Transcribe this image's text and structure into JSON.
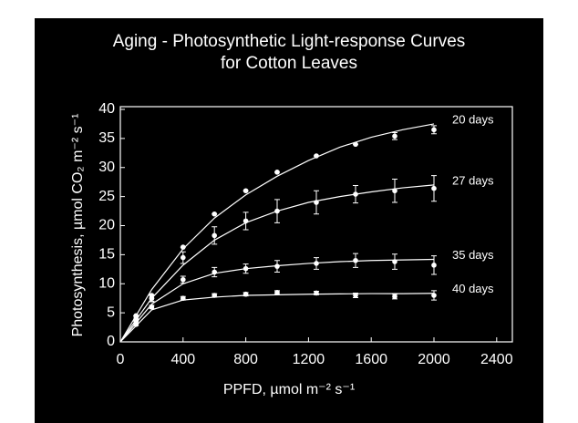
{
  "chart_data": {
    "type": "scatter",
    "title": [
      "Aging - Photosynthetic Light-response Curves",
      "for Cotton Leaves"
    ],
    "xlabel": "PPFD, µmol m⁻² s⁻¹",
    "ylabel": "Photosynthesis, µmol CO₂ m⁻² s⁻¹",
    "x": [
      100,
      200,
      400,
      600,
      800,
      1000,
      1250,
      1500,
      1750,
      2000
    ],
    "fit_x": [
      0,
      200,
      400,
      600,
      800,
      1000,
      1200,
      1400,
      1600,
      1800,
      2000
    ],
    "series": [
      {
        "name": "20 days",
        "color": "#ffffff",
        "values": [
          4.5,
          8,
          16.3,
          22,
          26,
          29.2,
          32,
          34,
          35.4,
          36.5
        ],
        "errors": [
          0,
          0,
          0,
          0,
          0,
          0,
          0,
          0,
          0.6,
          0.7
        ],
        "fit": [
          0,
          9,
          16,
          21.3,
          25.3,
          28.5,
          31.2,
          33.5,
          35.2,
          36.5,
          37.5
        ]
      },
      {
        "name": "27 days",
        "color": "#ffffff",
        "values": [
          4,
          7.5,
          14.5,
          18.3,
          20.8,
          22.5,
          24,
          25.4,
          26,
          26.4
        ],
        "errors": [
          0.4,
          0.6,
          1,
          1.5,
          1.5,
          2,
          2,
          1.5,
          2,
          2.2
        ],
        "fit": [
          0,
          7.5,
          13.2,
          17.5,
          20.5,
          22.5,
          24,
          25,
          25.8,
          26.5,
          27
        ]
      },
      {
        "name": "35 days",
        "color": "#ffffff",
        "values": [
          3.5,
          7.5,
          10.7,
          12,
          12.6,
          13,
          13.5,
          14,
          13.8,
          13.2
        ],
        "errors": [
          0.3,
          0.5,
          0.6,
          0.8,
          0.8,
          1,
          1,
          1.2,
          1.3,
          1.6
        ],
        "fit": [
          0,
          6.5,
          10,
          11.8,
          12.6,
          13.1,
          13.5,
          13.8,
          14,
          14.1,
          14.2
        ]
      },
      {
        "name": "40 days",
        "color": "#ffffff",
        "values": [
          3,
          6,
          7.5,
          8,
          8.2,
          8.5,
          8.4,
          8,
          7.8,
          8
        ],
        "errors": [
          0.2,
          0.3,
          0.3,
          0.3,
          0.3,
          0.3,
          0.3,
          0.4,
          0.4,
          0.8
        ],
        "fit": [
          0,
          5.5,
          7.2,
          7.7,
          8,
          8.1,
          8.2,
          8.25,
          8.3,
          8.3,
          8.35
        ]
      }
    ],
    "xlim": [
      0,
      2500
    ],
    "ylim": [
      0,
      40
    ],
    "xticks": [
      0,
      400,
      800,
      1200,
      1600,
      2000,
      2400
    ],
    "yticks": [
      0,
      5,
      10,
      15,
      20,
      25,
      30,
      35,
      40
    ]
  }
}
